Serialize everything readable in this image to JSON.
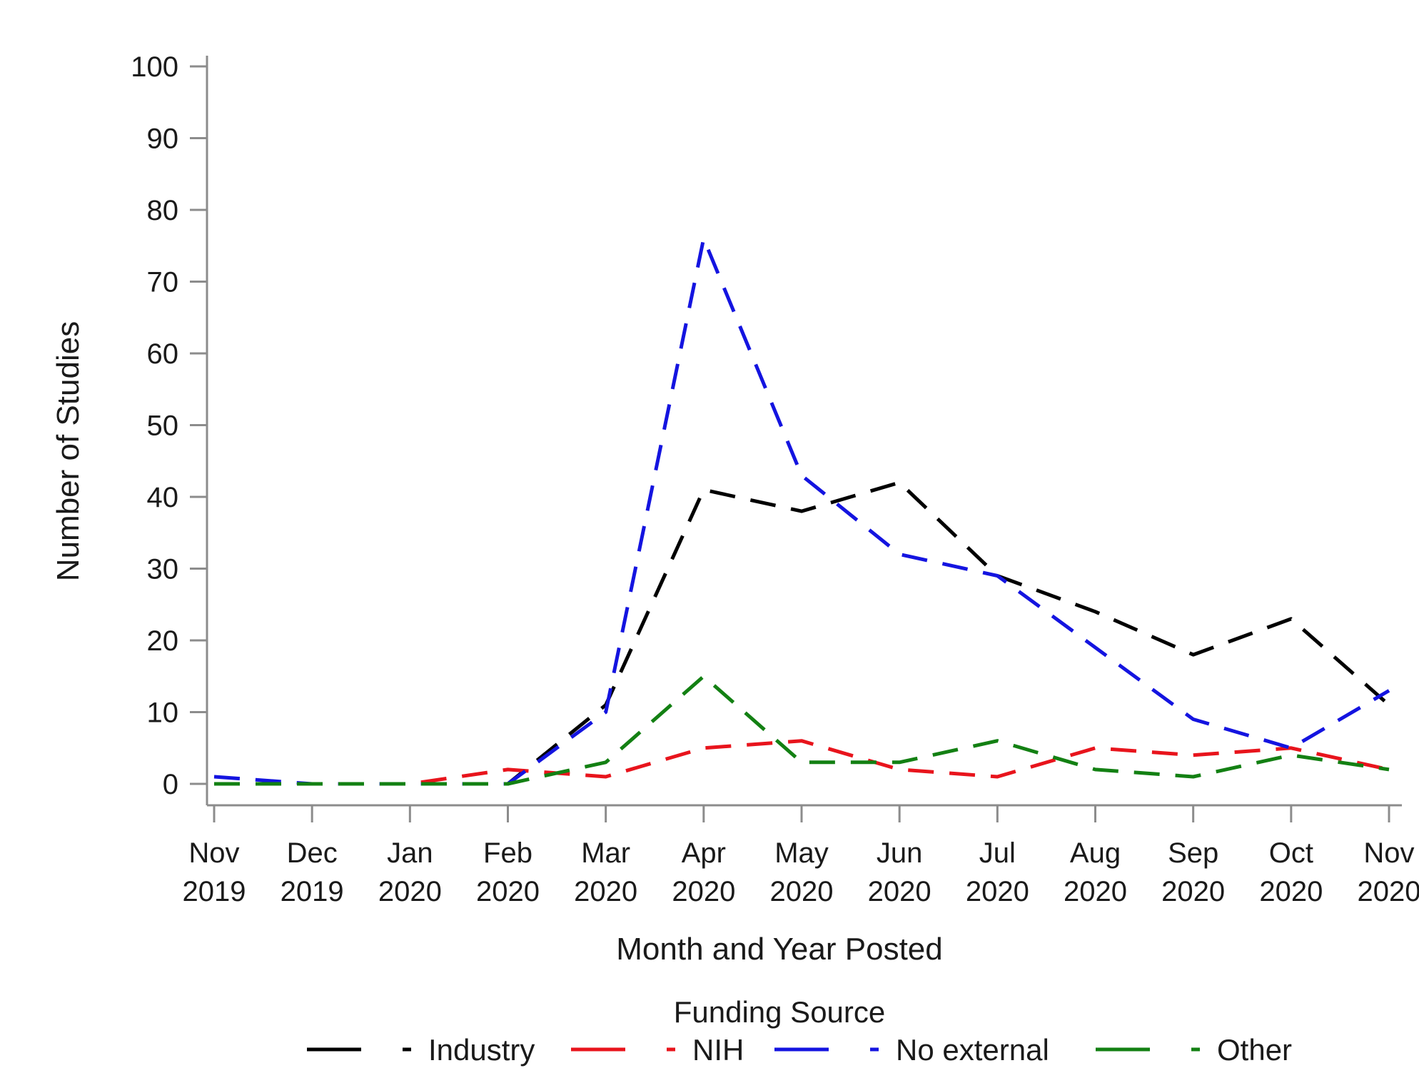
{
  "chart_data": {
    "type": "line",
    "title": "",
    "xlabel": "Month and Year Posted",
    "ylabel": "Number of Studies",
    "ylim": [
      0,
      100
    ],
    "yticks": [
      "0",
      "10",
      "20",
      "30",
      "40",
      "50",
      "60",
      "70",
      "80",
      "90",
      "100"
    ],
    "categories": [
      [
        "Nov",
        "2019"
      ],
      [
        "Dec",
        "2019"
      ],
      [
        "Jan",
        "2020"
      ],
      [
        "Feb",
        "2020"
      ],
      [
        "Mar",
        "2020"
      ],
      [
        "Apr",
        "2020"
      ],
      [
        "May",
        "2020"
      ],
      [
        "Jun",
        "2020"
      ],
      [
        "Jul",
        "2020"
      ],
      [
        "Aug",
        "2020"
      ],
      [
        "Sep",
        "2020"
      ],
      [
        "Oct",
        "2020"
      ],
      [
        "Nov",
        "2020"
      ]
    ],
    "legend_title": "Funding Source",
    "legend_position": "bottom",
    "grid": false,
    "series": [
      {
        "name": "Industry",
        "color": "#000000",
        "values": [
          0,
          0,
          0,
          0,
          11,
          41,
          38,
          42,
          29,
          24,
          18,
          23,
          11
        ]
      },
      {
        "name": "NIH",
        "color": "#e8141c",
        "values": [
          0,
          0,
          0,
          2,
          1,
          5,
          6,
          2,
          1,
          5,
          4,
          5,
          2
        ]
      },
      {
        "name": "No external",
        "color": "#1414e0",
        "values": [
          1,
          0,
          0,
          0,
          10,
          76,
          43,
          32,
          29,
          19,
          9,
          5,
          13
        ]
      },
      {
        "name": "Other",
        "color": "#138013",
        "values": [
          0,
          0,
          0,
          0,
          3,
          15,
          3,
          3,
          6,
          2,
          1,
          4,
          2
        ]
      }
    ]
  }
}
